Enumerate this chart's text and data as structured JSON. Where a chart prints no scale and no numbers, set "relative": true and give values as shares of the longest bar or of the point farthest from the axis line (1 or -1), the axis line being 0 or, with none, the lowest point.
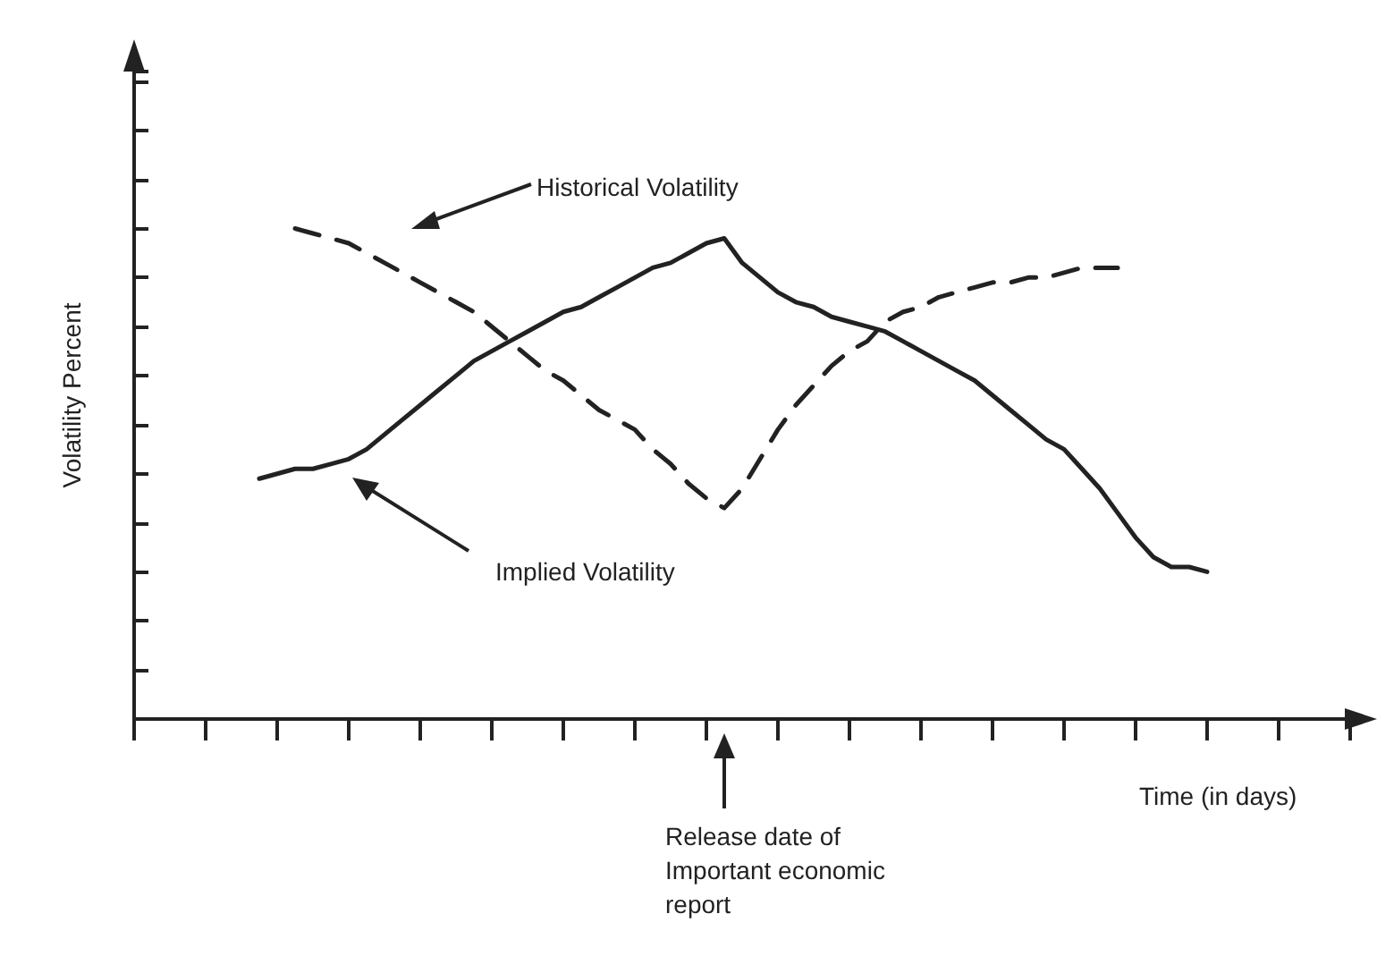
{
  "chart_data": {
    "type": "line",
    "relative": true,
    "xlabel": "Time (in days)",
    "ylabel": "Volatility Percent",
    "categories": [
      null,
      null,
      null,
      null,
      null,
      null,
      null,
      null,
      null,
      null,
      null,
      null,
      null,
      null,
      null,
      null,
      null,
      null,
      null,
      null,
      null,
      null,
      null,
      null,
      null,
      null,
      null,
      null,
      null,
      null,
      null,
      null,
      null,
      null,
      null,
      null,
      null,
      null,
      null,
      null,
      null,
      null,
      null,
      null,
      null,
      null,
      null,
      null,
      null,
      null,
      null,
      null,
      null,
      null,
      null,
      null,
      null,
      null,
      null,
      null,
      null,
      null,
      null,
      null,
      null,
      null,
      null,
      null,
      null
    ],
    "series": [
      {
        "color": "#222222",
        "line_style": "solid",
        "values": [
          null,
          null,
          null,
          null,
          null,
          null,
          null,
          0.49,
          0.5,
          0.51,
          0.51,
          0.52,
          0.53,
          0.55,
          0.58,
          0.61,
          0.64,
          0.67,
          0.7,
          0.73,
          0.75,
          0.77,
          0.79,
          0.81,
          0.83,
          0.84,
          0.86,
          0.88,
          0.9,
          0.92,
          0.93,
          0.95,
          0.97,
          0.98,
          0.93,
          0.9,
          0.87,
          0.85,
          0.84,
          0.82,
          0.81,
          0.8,
          0.79,
          0.77,
          0.75,
          0.73,
          0.71,
          0.69,
          0.66,
          0.63,
          0.6,
          0.57,
          0.55,
          0.51,
          0.47,
          0.42,
          0.37,
          0.33,
          0.31,
          0.31,
          0.3,
          null,
          null,
          null,
          null,
          null,
          null,
          null,
          null
        ]
      },
      {
        "color": "#222222",
        "line_style": "dashed",
        "values": [
          null,
          null,
          null,
          null,
          null,
          null,
          null,
          null,
          null,
          1.0,
          0.99,
          0.98,
          0.97,
          0.95,
          0.93,
          0.91,
          0.89,
          0.87,
          0.85,
          0.83,
          0.8,
          0.77,
          0.74,
          0.71,
          0.69,
          0.66,
          0.63,
          0.61,
          0.59,
          0.55,
          0.52,
          0.48,
          0.45,
          0.43,
          0.47,
          0.53,
          0.59,
          0.64,
          0.68,
          0.72,
          0.75,
          0.77,
          0.81,
          0.83,
          0.84,
          0.86,
          0.87,
          0.88,
          0.89,
          0.89,
          0.9,
          0.9,
          0.91,
          0.92,
          0.92,
          0.92,
          null,
          null,
          null,
          null,
          null,
          null,
          null,
          null,
          null,
          null,
          null,
          null,
          null
        ]
      }
    ],
    "annotations": [
      "Historical Volatility",
      "Implied Volatility",
      "Release date of Important economic report"
    ],
    "grid": false,
    "marker": "none"
  }
}
